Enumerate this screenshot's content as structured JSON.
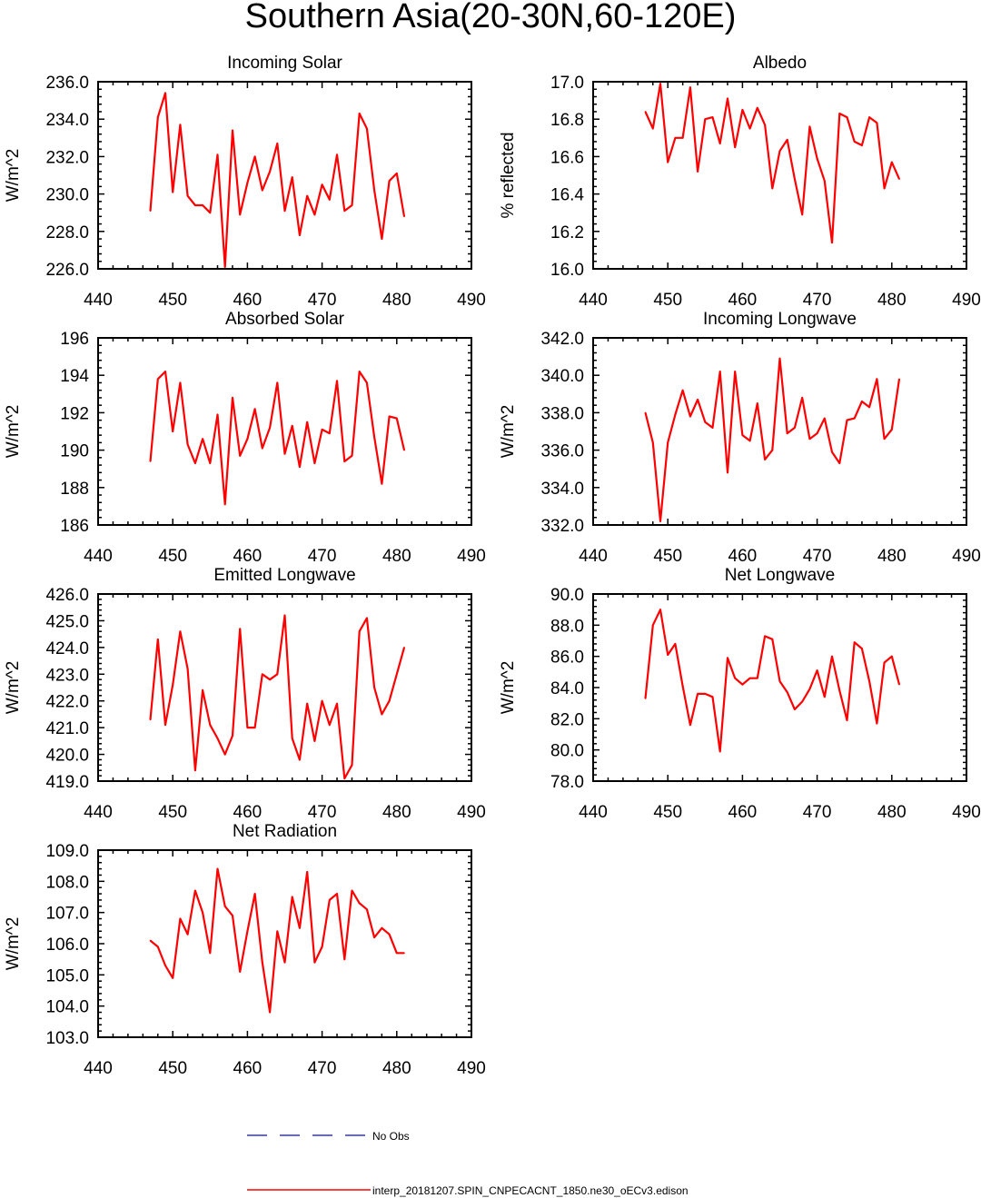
{
  "figure": {
    "title": "Southern Asia(20-30N,60-120E)"
  },
  "colors": {
    "model_line": "#ff0000",
    "obs_line": "#3333cc"
  },
  "legend": {
    "obs_label": "No Obs",
    "model_label": "interp_20181207.SPIN_CNPECACNT_1850.ne30_oECv3.edison"
  },
  "chart_data": [
    {
      "type": "line",
      "title": "Incoming Solar",
      "xlabel": "",
      "ylabel": "W/m^2",
      "xlim": [
        440,
        490
      ],
      "xticks": [
        "440",
        "450",
        "460",
        "470",
        "480",
        "490"
      ],
      "ylim": [
        226,
        236
      ],
      "yticks": [
        "226.0",
        "228.0",
        "230.0",
        "232.0",
        "234.0",
        "236.0"
      ],
      "x": [
        447,
        448,
        449,
        450,
        451,
        452,
        453,
        454,
        455,
        456,
        457,
        458,
        459,
        460,
        461,
        462,
        463,
        464,
        465,
        466,
        467,
        468,
        469,
        470,
        471,
        472,
        473,
        474,
        475,
        476,
        477,
        478,
        479,
        480,
        481
      ],
      "series": [
        {
          "name": "interp_20181207.SPIN_CNPECACNT_1850.ne30_oECv3.edison",
          "values": [
            229.1,
            234.1,
            235.4,
            230.1,
            233.7,
            229.9,
            229.4,
            229.4,
            229.0,
            232.1,
            226.1,
            233.4,
            228.9,
            230.6,
            232.0,
            230.2,
            231.2,
            232.7,
            229.1,
            230.9,
            227.8,
            229.9,
            228.9,
            230.5,
            229.7,
            232.1,
            229.1,
            229.4,
            234.3,
            233.5,
            230.2,
            227.6,
            230.7,
            231.1,
            228.8
          ]
        }
      ]
    },
    {
      "type": "line",
      "title": "Albedo",
      "xlabel": "",
      "ylabel": "% reflected",
      "xlim": [
        440,
        490
      ],
      "xticks": [
        "440",
        "450",
        "460",
        "470",
        "480",
        "490"
      ],
      "ylim": [
        16.0,
        17.0
      ],
      "yticks": [
        "16.0",
        "16.2",
        "16.4",
        "16.6",
        "16.8",
        "17.0"
      ],
      "x": [
        447,
        448,
        449,
        450,
        451,
        452,
        453,
        454,
        455,
        456,
        457,
        458,
        459,
        460,
        461,
        462,
        463,
        464,
        465,
        466,
        467,
        468,
        469,
        470,
        471,
        472,
        473,
        474,
        475,
        476,
        477,
        478,
        479,
        480,
        481
      ],
      "series": [
        {
          "name": "interp_20181207.SPIN_CNPECACNT_1850.ne30_oECv3.edison",
          "values": [
            16.84,
            16.75,
            16.99,
            16.57,
            16.7,
            16.7,
            16.97,
            16.52,
            16.8,
            16.81,
            16.67,
            16.91,
            16.65,
            16.85,
            16.75,
            16.86,
            16.77,
            16.43,
            16.63,
            16.69,
            16.48,
            16.29,
            16.76,
            16.59,
            16.47,
            16.14,
            16.83,
            16.81,
            16.68,
            16.66,
            16.81,
            16.78,
            16.43,
            16.57,
            16.48
          ]
        }
      ]
    },
    {
      "type": "line",
      "title": "Absorbed Solar",
      "xlabel": "",
      "ylabel": "W/m^2",
      "xlim": [
        440,
        490
      ],
      "xticks": [
        "440",
        "450",
        "460",
        "470",
        "480",
        "490"
      ],
      "ylim": [
        186,
        196
      ],
      "yticks": [
        "186",
        "188",
        "190",
        "192",
        "194",
        "196"
      ],
      "x": [
        447,
        448,
        449,
        450,
        451,
        452,
        453,
        454,
        455,
        456,
        457,
        458,
        459,
        460,
        461,
        462,
        463,
        464,
        465,
        466,
        467,
        468,
        469,
        470,
        471,
        472,
        473,
        474,
        475,
        476,
        477,
        478,
        479,
        480,
        481
      ],
      "series": [
        {
          "name": "interp_20181207.SPIN_CNPECACNT_1850.ne30_oECv3.edison",
          "values": [
            189.4,
            193.8,
            194.2,
            191.0,
            193.6,
            190.3,
            189.3,
            190.6,
            189.3,
            191.9,
            187.1,
            192.8,
            189.7,
            190.6,
            192.2,
            190.1,
            191.2,
            193.6,
            189.8,
            191.3,
            189.1,
            191.5,
            189.3,
            191.1,
            190.9,
            193.7,
            189.4,
            189.7,
            194.2,
            193.6,
            190.7,
            188.2,
            191.8,
            191.7,
            190.0
          ]
        }
      ]
    },
    {
      "type": "line",
      "title": "Incoming Longwave",
      "xlabel": "",
      "ylabel": "W/m^2",
      "xlim": [
        440,
        490
      ],
      "xticks": [
        "440",
        "450",
        "460",
        "470",
        "480",
        "490"
      ],
      "ylim": [
        332,
        342
      ],
      "yticks": [
        "332.0",
        "334.0",
        "336.0",
        "338.0",
        "340.0",
        "342.0"
      ],
      "x": [
        447,
        448,
        449,
        450,
        451,
        452,
        453,
        454,
        455,
        456,
        457,
        458,
        459,
        460,
        461,
        462,
        463,
        464,
        465,
        466,
        467,
        468,
        469,
        470,
        471,
        472,
        473,
        474,
        475,
        476,
        477,
        478,
        479,
        480,
        481
      ],
      "series": [
        {
          "name": "interp_20181207.SPIN_CNPECACNT_1850.ne30_oECv3.edison",
          "values": [
            338.0,
            336.4,
            332.2,
            336.4,
            337.9,
            339.2,
            337.8,
            338.7,
            337.5,
            337.2,
            340.2,
            334.8,
            340.2,
            336.8,
            336.5,
            338.5,
            335.5,
            336.0,
            340.9,
            336.9,
            337.2,
            338.8,
            336.6,
            336.9,
            337.7,
            335.9,
            335.3,
            337.6,
            337.7,
            338.6,
            338.3,
            339.8,
            336.6,
            337.1,
            339.8
          ]
        }
      ]
    },
    {
      "type": "line",
      "title": "Emitted Longwave",
      "xlabel": "",
      "ylabel": "W/m^2",
      "xlim": [
        440,
        490
      ],
      "xticks": [
        "440",
        "450",
        "460",
        "470",
        "480",
        "490"
      ],
      "ylim": [
        419,
        426
      ],
      "yticks": [
        "419.0",
        "420.0",
        "421.0",
        "422.0",
        "423.0",
        "424.0",
        "425.0",
        "426.0"
      ],
      "x": [
        447,
        448,
        449,
        450,
        451,
        452,
        453,
        454,
        455,
        456,
        457,
        458,
        459,
        460,
        461,
        462,
        463,
        464,
        465,
        466,
        467,
        468,
        469,
        470,
        471,
        472,
        473,
        474,
        475,
        476,
        477,
        478,
        479,
        480,
        481
      ],
      "series": [
        {
          "name": "interp_20181207.SPIN_CNPECACNT_1850.ne30_oECv3.edison",
          "values": [
            421.3,
            424.3,
            421.1,
            422.6,
            424.6,
            423.2,
            419.4,
            422.4,
            421.1,
            420.6,
            420.0,
            420.7,
            424.7,
            421.0,
            421.0,
            423.0,
            422.8,
            423.0,
            425.2,
            420.6,
            419.8,
            421.9,
            420.5,
            422.0,
            421.1,
            421.9,
            419.1,
            419.6,
            424.6,
            425.1,
            422.5,
            421.5,
            422.0,
            423.0,
            424.0
          ]
        }
      ]
    },
    {
      "type": "line",
      "title": "Net Longwave",
      "xlabel": "",
      "ylabel": "W/m^2",
      "xlim": [
        440,
        490
      ],
      "xticks": [
        "440",
        "450",
        "460",
        "470",
        "480",
        "490"
      ],
      "ylim": [
        78,
        90
      ],
      "yticks": [
        "78.0",
        "80.0",
        "82.0",
        "84.0",
        "86.0",
        "88.0",
        "90.0"
      ],
      "x": [
        447,
        448,
        449,
        450,
        451,
        452,
        453,
        454,
        455,
        456,
        457,
        458,
        459,
        460,
        461,
        462,
        463,
        464,
        465,
        466,
        467,
        468,
        469,
        470,
        471,
        472,
        473,
        474,
        475,
        476,
        477,
        478,
        479,
        480,
        481
      ],
      "series": [
        {
          "name": "interp_20181207.SPIN_CNPECACNT_1850.ne30_oECv3.edison",
          "values": [
            83.3,
            88.0,
            89.0,
            86.1,
            86.8,
            84.1,
            81.6,
            83.6,
            83.6,
            83.4,
            79.9,
            85.9,
            84.6,
            84.2,
            84.6,
            84.6,
            87.3,
            87.1,
            84.4,
            83.7,
            82.6,
            83.1,
            83.9,
            85.1,
            83.4,
            86.0,
            83.8,
            81.9,
            86.9,
            86.5,
            84.4,
            81.7,
            85.6,
            86.0,
            84.2
          ]
        }
      ]
    },
    {
      "type": "line",
      "title": "Net Radiation",
      "xlabel": "",
      "ylabel": "W/m^2",
      "xlim": [
        440,
        490
      ],
      "xticks": [
        "440",
        "450",
        "460",
        "470",
        "480",
        "490"
      ],
      "ylim": [
        103,
        109
      ],
      "yticks": [
        "103.0",
        "104.0",
        "105.0",
        "106.0",
        "107.0",
        "108.0",
        "109.0"
      ],
      "x": [
        447,
        448,
        449,
        450,
        451,
        452,
        453,
        454,
        455,
        456,
        457,
        458,
        459,
        460,
        461,
        462,
        463,
        464,
        465,
        466,
        467,
        468,
        469,
        470,
        471,
        472,
        473,
        474,
        475,
        476,
        477,
        478,
        479,
        480,
        481
      ],
      "series": [
        {
          "name": "interp_20181207.SPIN_CNPECACNT_1850.ne30_oECv3.edison",
          "values": [
            106.1,
            105.9,
            105.3,
            104.9,
            106.8,
            106.3,
            107.7,
            107.0,
            105.7,
            108.4,
            107.2,
            106.9,
            105.1,
            106.4,
            107.6,
            105.4,
            103.8,
            106.4,
            105.4,
            107.5,
            106.5,
            108.3,
            105.4,
            105.9,
            107.4,
            107.6,
            105.5,
            107.7,
            107.3,
            107.1,
            106.2,
            106.5,
            106.3,
            105.7,
            105.7
          ]
        }
      ]
    }
  ]
}
